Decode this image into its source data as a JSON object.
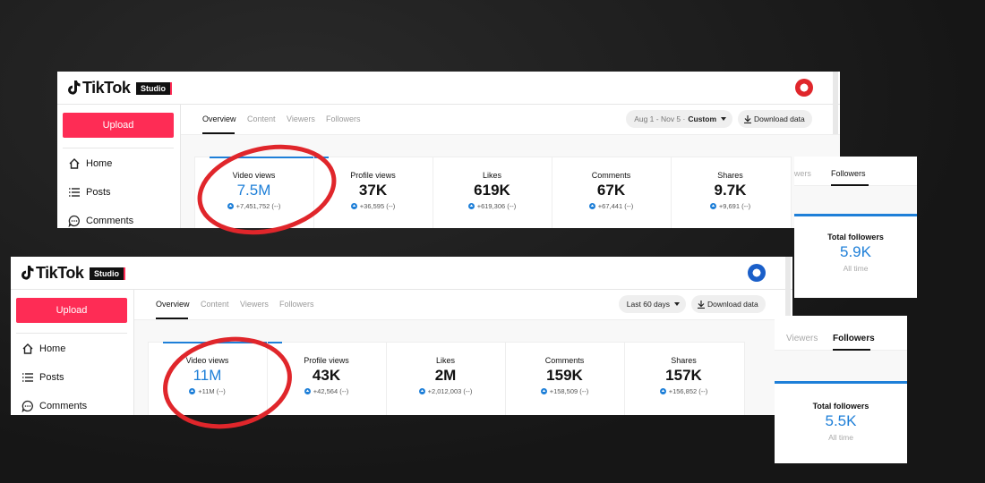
{
  "panels": [
    {
      "logo": "TikTok",
      "badge": "Studio",
      "upload": "Upload",
      "nav": [
        "Home",
        "Posts",
        "Comments"
      ],
      "tabs": [
        "Overview",
        "Content",
        "Viewers",
        "Followers"
      ],
      "date_range": "Aug 1 - Nov 5 ·",
      "date_mode": "Custom",
      "download": "Download data",
      "metrics": [
        {
          "label": "Video views",
          "value": "7.5M",
          "change": "+7,451,752 (--)"
        },
        {
          "label": "Profile views",
          "value": "37K",
          "change": "+36,595 (--)"
        },
        {
          "label": "Likes",
          "value": "619K",
          "change": "+619,306 (--)"
        },
        {
          "label": "Comments",
          "value": "67K",
          "change": "+67,441 (--)"
        },
        {
          "label": "Shares",
          "value": "9.7K",
          "change": "+9,691 (--)"
        }
      ],
      "followers_card": {
        "tabs": [
          "Viewers",
          "Followers"
        ],
        "label": "Total followers",
        "value": "5.9K",
        "period": "All time"
      }
    },
    {
      "logo": "TikTok",
      "badge": "Studio",
      "upload": "Upload",
      "nav": [
        "Home",
        "Posts",
        "Comments"
      ],
      "tabs": [
        "Overview",
        "Content",
        "Viewers",
        "Followers"
      ],
      "date_range": "Last 60 days",
      "download": "Download data",
      "metrics": [
        {
          "label": "Video views",
          "value": "11M",
          "change": "+11M (--)"
        },
        {
          "label": "Profile views",
          "value": "43K",
          "change": "+42,564 (--)"
        },
        {
          "label": "Likes",
          "value": "2M",
          "change": "+2,012,003 (--)"
        },
        {
          "label": "Comments",
          "value": "159K",
          "change": "+158,509 (--)"
        },
        {
          "label": "Shares",
          "value": "157K",
          "change": "+156,852 (--)"
        }
      ],
      "followers_card": {
        "tabs": [
          "Viewers",
          "Followers"
        ],
        "label": "Total followers",
        "value": "5.5K",
        "period": "All time"
      }
    }
  ]
}
